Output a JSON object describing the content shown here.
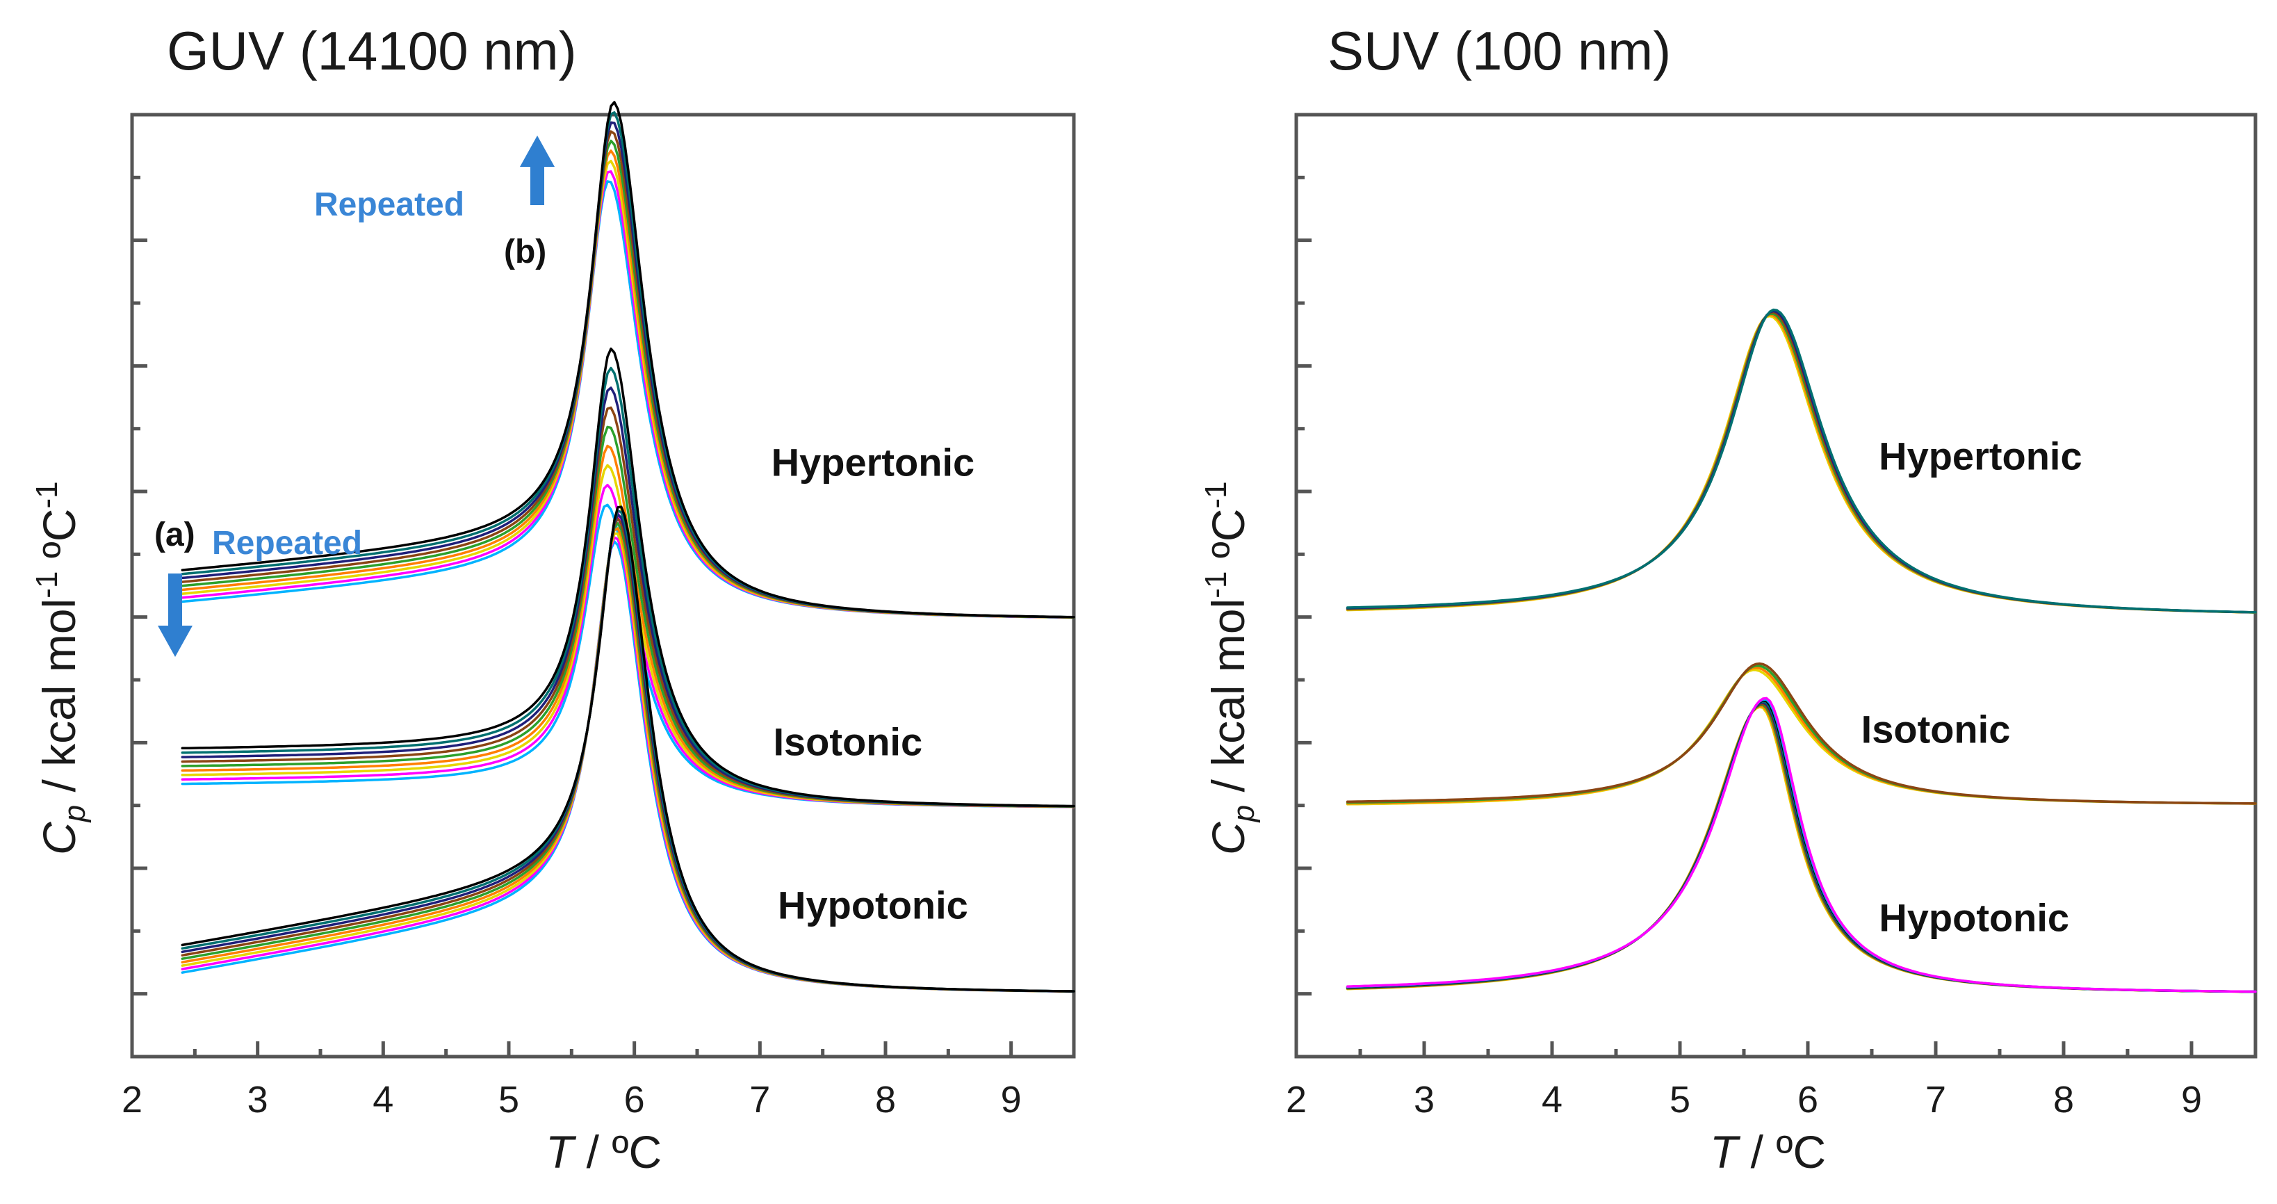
{
  "figure": {
    "panels": [
      "GUV (14100 nm)",
      "SUV (100 nm)"
    ]
  },
  "annotations": {
    "repeated_top": "Repeated",
    "repeated_left": "Repeated",
    "mark_a": "(a)",
    "mark_b": "(b)"
  },
  "colors": {
    "arrow": "#2f7fd0",
    "series": [
      "#00b3ff",
      "#ff00ff",
      "#e6d600",
      "#ff7f00",
      "#2ca02c",
      "#8b4513",
      "#1f1f7a",
      "#007070",
      "#000000"
    ]
  },
  "chart_data": [
    {
      "type": "line",
      "title": "GUV (14100 nm)",
      "xlabel": "T / °C",
      "ylabel": "Cp / kcal mol-1 °C-1",
      "xlim": [
        2,
        9.5
      ],
      "ylim": [
        0,
        15
      ],
      "xticks": [
        2,
        3,
        4,
        5,
        6,
        7,
        8,
        9
      ],
      "yticks_unlabeled": [
        1,
        2,
        3,
        4,
        5,
        6,
        7,
        8,
        9,
        10,
        11,
        12,
        13,
        14
      ],
      "grid": false,
      "series": [
        {
          "name": "Hypertonic",
          "label": "Hypertonic",
          "baseline": 6.95,
          "pre_start": 7.4,
          "pre_end": 8.0,
          "peak_T": 5.82,
          "peak": 14.35,
          "width_left": 0.28,
          "width_right": 0.38,
          "replicates": 9,
          "peak_spread": 1.0,
          "pre_spread": 0.25,
          "label_T": 7.9,
          "label_y": 9.25
        },
        {
          "name": "Isotonic",
          "label": "Isotonic",
          "baseline": 3.95,
          "pre_start": 4.6,
          "pre_end": 4.65,
          "peak_T": 5.8,
          "peak": 10.65,
          "width_left": 0.27,
          "width_right": 0.36,
          "replicates": 9,
          "peak_spread": 2.2,
          "pre_spread": 0.28,
          "label_T": 7.7,
          "label_y": 4.8
        },
        {
          "name": "Hypotonic",
          "label": "Hypotonic",
          "baseline": 1.0,
          "pre_start": 1.4,
          "pre_end": 2.6,
          "peak_T": 5.87,
          "peak": 7.55,
          "width_left": 0.27,
          "width_right": 0.36,
          "replicates": 9,
          "peak_spread": 0.35,
          "pre_spread": 0.22,
          "label_T": 7.9,
          "label_y": 2.2
        }
      ]
    },
    {
      "type": "line",
      "title": "SUV (100 nm)",
      "xlabel": "T / °C",
      "ylabel": "Cp / kcal mol-1 °C-1",
      "xlim": [
        2,
        9.5
      ],
      "ylim": [
        0,
        15
      ],
      "xticks": [
        2,
        3,
        4,
        5,
        6,
        7,
        8,
        9
      ],
      "yticks_unlabeled": [
        1,
        2,
        3,
        4,
        5,
        6,
        7,
        8,
        9,
        10,
        11,
        12,
        13,
        14
      ],
      "grid": false,
      "series": [
        {
          "name": "Hypertonic",
          "label": "Hypertonic",
          "baseline": 7.0,
          "pre_start": 7.05,
          "pre_end": 7.05,
          "peak_T": 5.72,
          "peak": 11.85,
          "width_left": 0.55,
          "width_right": 0.6,
          "replicates": 6,
          "peak_spread": 0.08,
          "pre_spread": 0.02,
          "label_T": 7.35,
          "label_y": 9.35
        },
        {
          "name": "Isotonic",
          "label": "Isotonic",
          "baseline": 4.0,
          "pre_start": 4.0,
          "pre_end": 4.0,
          "peak_T": 5.6,
          "peak": 6.25,
          "width_left": 0.55,
          "width_right": 0.58,
          "replicates": 4,
          "peak_spread": 0.08,
          "pre_spread": 0.02,
          "label_T": 7.0,
          "label_y": 5.0
        },
        {
          "name": "Hypotonic",
          "label": "Hypotonic",
          "baseline": 1.0,
          "pre_start": 1.0,
          "pre_end": 1.0,
          "peak_T": 5.65,
          "peak": 5.7,
          "width_left": 0.6,
          "width_right": 0.42,
          "replicates": 9,
          "peak_spread": 0.12,
          "pre_spread": 0.02,
          "label_T": 7.3,
          "label_y": 2.0
        }
      ]
    }
  ]
}
